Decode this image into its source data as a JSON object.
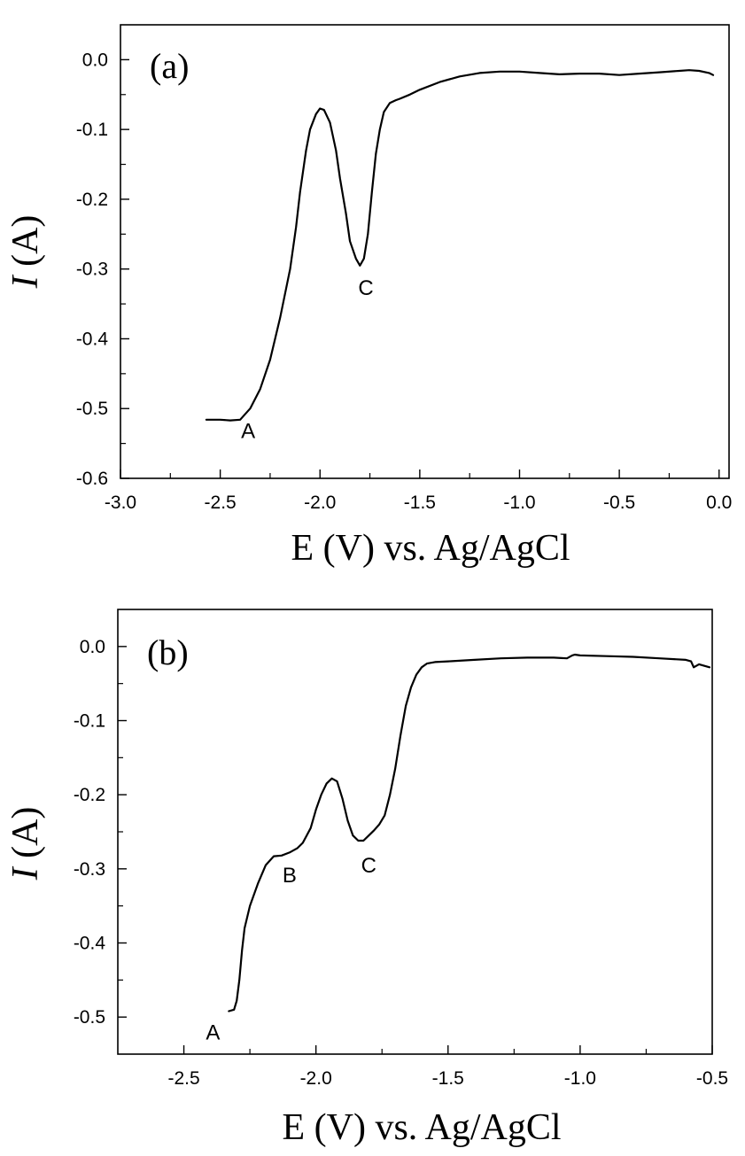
{
  "chart_data": [
    {
      "type": "line",
      "panel_label": "(a)",
      "xlabel": "E (V) vs. Ag/AgCl",
      "ylabel_italic": "I",
      "ylabel_rest": " (A)",
      "xlim": [
        -3.0,
        0.05
      ],
      "ylim": [
        -0.6,
        0.05
      ],
      "xticks": [
        -3.0,
        -2.5,
        -2.0,
        -1.5,
        -1.0,
        -0.5,
        0.0
      ],
      "xtick_labels": [
        "-3.0",
        "-2.5",
        "-2.0",
        "-1.5",
        "-1.0",
        "-0.5",
        "0.0"
      ],
      "yticks": [
        0.0,
        -0.1,
        -0.2,
        -0.3,
        -0.4,
        -0.5,
        -0.6
      ],
      "ytick_labels": [
        "0.0",
        "-0.1",
        "-0.2",
        "-0.3",
        "-0.4",
        "-0.5",
        "-0.6"
      ],
      "series": [
        {
          "name": "current",
          "x": [
            -2.57,
            -2.5,
            -2.45,
            -2.4,
            -2.35,
            -2.3,
            -2.25,
            -2.2,
            -2.15,
            -2.12,
            -2.1,
            -2.07,
            -2.05,
            -2.02,
            -2.0,
            -1.98,
            -1.95,
            -1.92,
            -1.9,
            -1.87,
            -1.85,
            -1.82,
            -1.8,
            -1.78,
            -1.76,
            -1.74,
            -1.72,
            -1.7,
            -1.68,
            -1.65,
            -1.62,
            -1.6,
            -1.55,
            -1.5,
            -1.4,
            -1.3,
            -1.2,
            -1.1,
            -1.0,
            -0.9,
            -0.8,
            -0.7,
            -0.6,
            -0.5,
            -0.4,
            -0.3,
            -0.2,
            -0.15,
            -0.1,
            -0.05,
            -0.03
          ],
          "y": [
            -0.516,
            -0.516,
            -0.517,
            -0.516,
            -0.5,
            -0.472,
            -0.43,
            -0.37,
            -0.3,
            -0.24,
            -0.19,
            -0.13,
            -0.1,
            -0.078,
            -0.07,
            -0.072,
            -0.09,
            -0.13,
            -0.17,
            -0.22,
            -0.26,
            -0.285,
            -0.295,
            -0.285,
            -0.25,
            -0.19,
            -0.135,
            -0.1,
            -0.075,
            -0.062,
            -0.058,
            -0.056,
            -0.05,
            -0.043,
            -0.032,
            -0.024,
            -0.019,
            -0.017,
            -0.017,
            -0.019,
            -0.021,
            -0.02,
            -0.02,
            -0.022,
            -0.02,
            -0.018,
            -0.016,
            -0.015,
            -0.016,
            -0.019,
            -0.022
          ]
        }
      ],
      "annotations": [
        {
          "text": "A",
          "x": -2.36,
          "y": -0.542
        },
        {
          "text": "C",
          "x": -1.77,
          "y": -0.337
        }
      ]
    },
    {
      "type": "line",
      "panel_label": "(b)",
      "xlabel": "E (V) vs. Ag/AgCl",
      "ylabel_italic": "I",
      "ylabel_rest": " (A)",
      "xlim": [
        -2.75,
        -0.5
      ],
      "ylim": [
        -0.55,
        0.05
      ],
      "xticks": [
        -2.5,
        -2.0,
        -1.5,
        -1.0,
        -0.5
      ],
      "xtick_labels": [
        "-2.5",
        "-2.0",
        "-1.5",
        "-1.0",
        "-0.5"
      ],
      "yticks": [
        0.0,
        -0.1,
        -0.2,
        -0.3,
        -0.4,
        -0.5
      ],
      "ytick_labels": [
        "0.0",
        "-0.1",
        "-0.2",
        "-0.3",
        "-0.4",
        "-0.5"
      ],
      "series": [
        {
          "name": "current",
          "x": [
            -2.33,
            -2.31,
            -2.3,
            -2.29,
            -2.28,
            -2.27,
            -2.25,
            -2.22,
            -2.19,
            -2.16,
            -2.13,
            -2.1,
            -2.07,
            -2.05,
            -2.02,
            -2.0,
            -1.98,
            -1.96,
            -1.94,
            -1.92,
            -1.9,
            -1.88,
            -1.86,
            -1.84,
            -1.82,
            -1.8,
            -1.78,
            -1.76,
            -1.74,
            -1.72,
            -1.7,
            -1.68,
            -1.66,
            -1.64,
            -1.62,
            -1.6,
            -1.58,
            -1.55,
            -1.5,
            -1.4,
            -1.3,
            -1.2,
            -1.1,
            -1.05,
            -1.03,
            -1.02,
            -1.0,
            -0.9,
            -0.8,
            -0.7,
            -0.6,
            -0.58,
            -0.57,
            -0.55,
            -0.51
          ],
          "y": [
            -0.492,
            -0.49,
            -0.478,
            -0.45,
            -0.41,
            -0.38,
            -0.35,
            -0.32,
            -0.295,
            -0.283,
            -0.282,
            -0.278,
            -0.272,
            -0.265,
            -0.245,
            -0.22,
            -0.2,
            -0.185,
            -0.178,
            -0.182,
            -0.205,
            -0.235,
            -0.255,
            -0.262,
            -0.262,
            -0.255,
            -0.248,
            -0.24,
            -0.228,
            -0.2,
            -0.165,
            -0.12,
            -0.08,
            -0.055,
            -0.038,
            -0.028,
            -0.023,
            -0.021,
            -0.02,
            -0.018,
            -0.016,
            -0.015,
            -0.015,
            -0.016,
            -0.012,
            -0.011,
            -0.012,
            -0.013,
            -0.014,
            -0.016,
            -0.018,
            -0.02,
            -0.028,
            -0.024,
            -0.028
          ]
        }
      ],
      "annotations": [
        {
          "text": "A",
          "x": -2.39,
          "y": -0.53
        },
        {
          "text": "B",
          "x": -2.1,
          "y": -0.318
        },
        {
          "text": "C",
          "x": -1.8,
          "y": -0.305
        }
      ]
    }
  ]
}
